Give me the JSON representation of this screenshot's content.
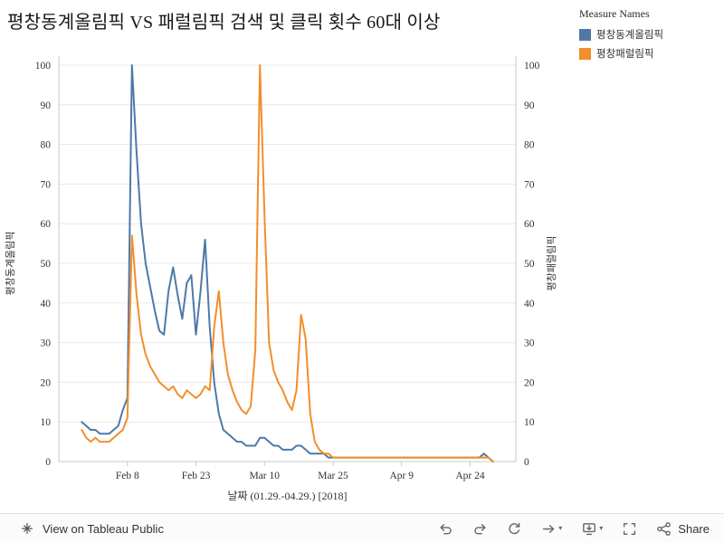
{
  "header": {
    "title": "평창동계올림픽 VS 패럴림픽 검색 및 클릭 횟수 60대 이상"
  },
  "legend": {
    "title": "Measure Names",
    "items": [
      {
        "label": "평창동계올림픽",
        "color": "#4e79a7"
      },
      {
        "label": "평창패럴림픽",
        "color": "#f28e2b"
      }
    ]
  },
  "footer": {
    "view_on": "View on Tableau Public",
    "share": "Share"
  },
  "chart_data": {
    "type": "line",
    "title": "평창동계올림픽 VS 패럴림픽 검색 및 클릭 횟수 60대 이상",
    "xlabel": "날짜 (01.29.-04.29.) [2018]",
    "ylabel_left": "평창동계올림픽",
    "ylabel_right": "평창패럴림픽",
    "ylim": [
      0,
      100
    ],
    "y_ticks": [
      0,
      10,
      20,
      30,
      40,
      50,
      60,
      70,
      80,
      90,
      100
    ],
    "x_ticks": [
      {
        "i": 10,
        "label": "Feb 8"
      },
      {
        "i": 25,
        "label": "Feb 23"
      },
      {
        "i": 40,
        "label": "Mar 10"
      },
      {
        "i": 55,
        "label": "Mar 25"
      },
      {
        "i": 70,
        "label": "Apr 9"
      },
      {
        "i": 85,
        "label": "Apr 24"
      }
    ],
    "grid": "horizontal",
    "legend_position": "top-right",
    "colors": {
      "grid": "#e8e8e8",
      "axis": "#c8c8c8"
    },
    "dates": [
      "01-29",
      "01-30",
      "01-31",
      "02-01",
      "02-02",
      "02-03",
      "02-04",
      "02-05",
      "02-06",
      "02-07",
      "02-08",
      "02-09",
      "02-10",
      "02-11",
      "02-12",
      "02-13",
      "02-14",
      "02-15",
      "02-16",
      "02-17",
      "02-18",
      "02-19",
      "02-20",
      "02-21",
      "02-22",
      "02-23",
      "02-24",
      "02-25",
      "02-26",
      "02-27",
      "02-28",
      "03-01",
      "03-02",
      "03-03",
      "03-04",
      "03-05",
      "03-06",
      "03-07",
      "03-08",
      "03-09",
      "03-10",
      "03-11",
      "03-12",
      "03-13",
      "03-14",
      "03-15",
      "03-16",
      "03-17",
      "03-18",
      "03-19",
      "03-20",
      "03-21",
      "03-22",
      "03-23",
      "03-24",
      "03-25",
      "03-26",
      "03-27",
      "03-28",
      "03-29",
      "03-30",
      "03-31",
      "04-01",
      "04-02",
      "04-03",
      "04-04",
      "04-05",
      "04-06",
      "04-07",
      "04-08",
      "04-09",
      "04-10",
      "04-11",
      "04-12",
      "04-13",
      "04-14",
      "04-15",
      "04-16",
      "04-17",
      "04-18",
      "04-19",
      "04-20",
      "04-21",
      "04-22",
      "04-23",
      "04-24",
      "04-25",
      "04-26",
      "04-27",
      "04-28",
      "04-29"
    ],
    "series": [
      {
        "name": "평창동계올림픽",
        "axis": "left",
        "color": "#4e79a7",
        "values": [
          10,
          9,
          8,
          8,
          7,
          7,
          7,
          8,
          9,
          13,
          16,
          100,
          78,
          60,
          50,
          44,
          38,
          33,
          32,
          43,
          49,
          42,
          36,
          45,
          47,
          32,
          43,
          56,
          34,
          20,
          12,
          8,
          7,
          6,
          5,
          5,
          4,
          4,
          4,
          6,
          6,
          5,
          4,
          4,
          3,
          3,
          3,
          4,
          4,
          3,
          2,
          2,
          2,
          2,
          1,
          1,
          1,
          1,
          1,
          1,
          1,
          1,
          1,
          1,
          1,
          1,
          1,
          1,
          1,
          1,
          1,
          1,
          1,
          1,
          1,
          1,
          1,
          1,
          1,
          1,
          1,
          1,
          1,
          1,
          1,
          1,
          1,
          1,
          2,
          1,
          0
        ]
      },
      {
        "name": "평창패럴림픽",
        "axis": "right",
        "color": "#f28e2b",
        "values": [
          8,
          6,
          5,
          6,
          5,
          5,
          5,
          6,
          7,
          8,
          11,
          57,
          42,
          32,
          27,
          24,
          22,
          20,
          19,
          18,
          19,
          17,
          16,
          18,
          17,
          16,
          17,
          19,
          18,
          34,
          43,
          30,
          22,
          18,
          15,
          13,
          12,
          14,
          28,
          100,
          62,
          30,
          23,
          20,
          18,
          15,
          13,
          18,
          37,
          31,
          12,
          5,
          3,
          2,
          2,
          1,
          1,
          1,
          1,
          1,
          1,
          1,
          1,
          1,
          1,
          1,
          1,
          1,
          1,
          1,
          1,
          1,
          1,
          1,
          1,
          1,
          1,
          1,
          1,
          1,
          1,
          1,
          1,
          1,
          1,
          1,
          1,
          1,
          1,
          1,
          0
        ]
      }
    ]
  }
}
